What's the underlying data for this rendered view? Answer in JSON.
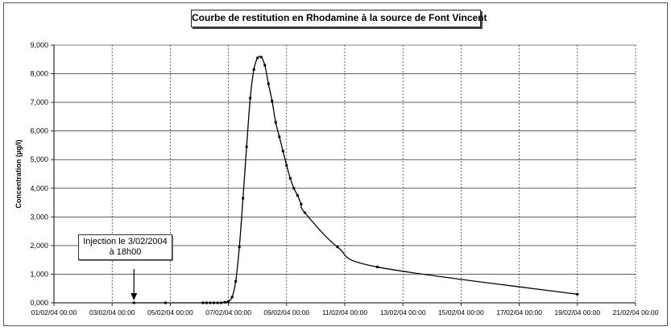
{
  "chart_data": {
    "type": "line",
    "title": "Courbe de restitution en Rhodamine à la source de Font Vincent",
    "ylabel": "Concentration (µg/l)",
    "xlabel": "",
    "x_axis_type": "datetime",
    "x_range": [
      "2004-02-01T00:00",
      "2004-02-21T00:00"
    ],
    "x_tick_labels": [
      "01/02/04 00:00",
      "03/02/04 00:00",
      "05/02/04 00:00",
      "07/02/04 00:00",
      "09/02/04 00:00",
      "11/02/04 00:00",
      "13/02/04 00:00",
      "15/02/04 00:00",
      "17/02/04 00:00",
      "19/02/04 00:00",
      "21/02/04 00:00"
    ],
    "ylim": [
      0,
      9000
    ],
    "y_tick_labels": [
      "0,000",
      "1,000",
      "2,000",
      "3,000",
      "4,000",
      "5,000",
      "6,000",
      "7,000",
      "8,000",
      "9,000"
    ],
    "grid": true,
    "legend": "none",
    "line_color": "#000000",
    "annotation": {
      "line1": "Injection le 3/02/2004",
      "line2": "à 18h00",
      "x": "2004-02-03T18:00"
    },
    "series": [
      {
        "points": [
          [
            "2004-02-03T18:00",
            0
          ],
          [
            "2004-02-04T20:00",
            0
          ],
          [
            "2004-02-06T03:00",
            0
          ],
          [
            "2004-02-06T06:00",
            0
          ],
          [
            "2004-02-06T09:00",
            0
          ],
          [
            "2004-02-06T12:00",
            0
          ],
          [
            "2004-02-06T15:00",
            0
          ],
          [
            "2004-02-06T18:00",
            0
          ],
          [
            "2004-02-06T21:00",
            20
          ],
          [
            "2004-02-07T00:00",
            50
          ],
          [
            "2004-02-07T03:00",
            200
          ],
          [
            "2004-02-07T06:00",
            750
          ],
          [
            "2004-02-07T09:00",
            1950
          ],
          [
            "2004-02-07T12:00",
            3650
          ],
          [
            "2004-02-07T15:00",
            5450
          ],
          [
            "2004-02-07T18:00",
            7150
          ],
          [
            "2004-02-07T21:00",
            8150
          ],
          [
            "2004-02-08T00:00",
            8550
          ],
          [
            "2004-02-08T03:00",
            8580
          ],
          [
            "2004-02-08T06:00",
            8300
          ],
          [
            "2004-02-08T09:00",
            7650
          ],
          [
            "2004-02-08T12:00",
            7050
          ],
          [
            "2004-02-08T15:00",
            6300
          ],
          [
            "2004-02-08T18:00",
            5800
          ],
          [
            "2004-02-08T21:00",
            5300
          ],
          [
            "2004-02-09T00:00",
            4800
          ],
          [
            "2004-02-09T03:00",
            4350
          ],
          [
            "2004-02-09T06:00",
            4000
          ],
          [
            "2004-02-09T09:00",
            3750
          ],
          [
            "2004-02-09T12:00",
            3450
          ],
          [
            "2004-02-09T15:00",
            3150
          ],
          [
            "2004-02-10T18:00",
            1950
          ],
          [
            "2004-02-12T03:00",
            1250
          ],
          [
            "2004-02-19T00:00",
            300
          ]
        ]
      }
    ]
  }
}
